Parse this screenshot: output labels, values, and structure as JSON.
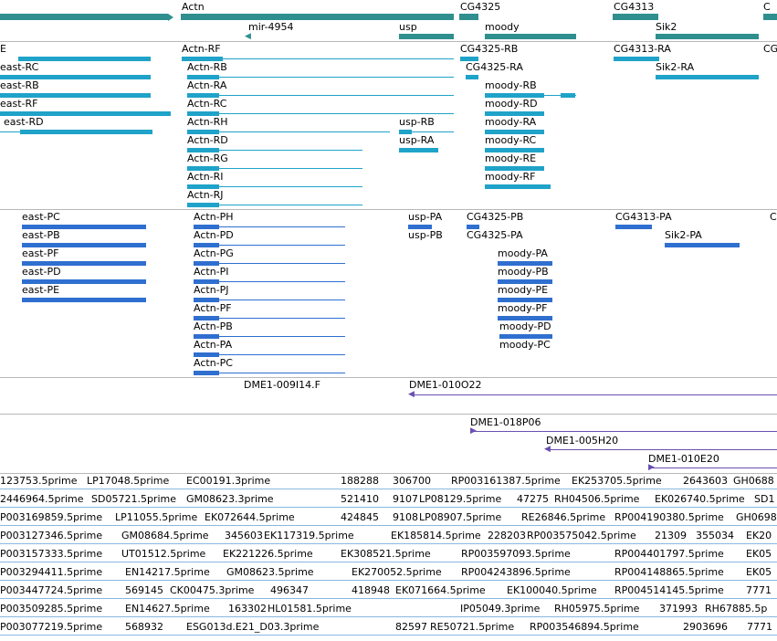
{
  "colors": {
    "gene_span": "#2f8f8f",
    "transcript": "#1fa3c9",
    "protein": "#2f6fcf",
    "clone": "#6a4fb0",
    "est": "#89b8e0",
    "separator": "#b8b8b8"
  },
  "genes": {
    "actn": "Actn",
    "mir4954": "mir-4954",
    "usp": "usp",
    "cg4325": "CG4325",
    "moody": "moody",
    "cg4313": "CG4313",
    "sik2": "Sik2",
    "cg_edge": "C",
    "east_edge": "E"
  },
  "transcripts": {
    "east": [
      "east-RC",
      "east-RB",
      "east-RF",
      "east-RD"
    ],
    "actn": [
      "Actn-RF",
      "Actn-RB",
      "Actn-RA",
      "Actn-RC",
      "Actn-RH",
      "Actn-RD",
      "Actn-RG",
      "Actn-RI",
      "Actn-RJ"
    ],
    "usp": [
      "usp-RB",
      "usp-RA"
    ],
    "cg4325": [
      "CG4325-RB",
      "CG4325-RA"
    ],
    "moody": [
      "moody-RB",
      "moody-RD",
      "moody-RA",
      "moody-RC",
      "moody-RE",
      "moody-RF"
    ],
    "cg4313": "CG4313-RA",
    "sik2": "Sik2-RA",
    "cg_edge": "CG"
  },
  "proteins": {
    "east": [
      "east-PC",
      "east-PB",
      "east-PF",
      "east-PD",
      "east-PE"
    ],
    "actn": [
      "Actn-PH",
      "Actn-PD",
      "Actn-PG",
      "Actn-PI",
      "Actn-PJ",
      "Actn-PF",
      "Actn-PB",
      "Actn-PA",
      "Actn-PC"
    ],
    "usp": [
      "usp-PA",
      "usp-PB"
    ],
    "cg4325": [
      "CG4325-PB",
      "CG4325-PA"
    ],
    "moody": [
      "moody-PA",
      "moody-PB",
      "moody-PE",
      "moody-PF",
      "moody-PD",
      "moody-PC"
    ],
    "cg4313": "CG4313-PA",
    "sik2": "Sik2-PA",
    "cg_edge": "C"
  },
  "clones": {
    "row1": [
      "DME1-009I14.F",
      "DME1-010O22"
    ],
    "row2": [
      "DME1-018P06",
      "DME1-005H20",
      "DME1-010E20"
    ]
  },
  "ests": [
    [
      "123753.5prime",
      "LP17048.5prime",
      "EC00191.3prime",
      "188288",
      "306700",
      "RP003161387.5prime",
      "EK253705.5prime",
      "2643603",
      "GH0688"
    ],
    [
      "2446964.5prime",
      "SD05721.5prime",
      "GM08623.3prime",
      "521410",
      "9107",
      "LP08129.5prime",
      "47275",
      "RH04506.5prime",
      "EK026740.5prime",
      "SD1"
    ],
    [
      "P003169859.5prime",
      "LP11055.5prime",
      "EK072644.5prime",
      "424845",
      "9108",
      "LP08907.5prime",
      "RE26846.5prime",
      "RP004190380.5prime",
      "GH0698"
    ],
    [
      "P003127346.5prime",
      "GM08684.5prime",
      "345603",
      "EK117319.5prime",
      "EK185814.5prime",
      "228203",
      "RP003575042.5prime",
      "21309",
      "355034",
      "EK20"
    ],
    [
      "P003157333.5prime",
      "UT01512.5prime",
      "EK221226.5prime",
      "EK308521.5prime",
      "RP003597093.5prime",
      "RP004401797.5prime",
      "EK05"
    ],
    [
      "P003294411.5prime",
      "EN14217.5prime",
      "GM08623.5prime",
      "EK270052.5prime",
      "RP004243896.5prime",
      "RP004148865.5prime",
      "EK05"
    ],
    [
      "P003447724.5prime",
      "569145",
      "CK00475.3prime",
      "496347",
      "418948",
      "EK071664.5prime",
      "EK100040.5prime",
      "RP004514145.5prime",
      "7771"
    ],
    [
      "P003509285.5prime",
      "EN14627.5prime",
      "163302",
      "HL01581.5prime",
      "IP05049.3prime",
      "RH05975.5prime",
      "371993",
      "RH67885.5p"
    ],
    [
      "P003077219.5prime",
      "568932",
      "ESG013d.E21_D03.3prime",
      "82597",
      "RE50721.5prime",
      "RP003546894.5prime",
      "2903696",
      "7771"
    ]
  ]
}
